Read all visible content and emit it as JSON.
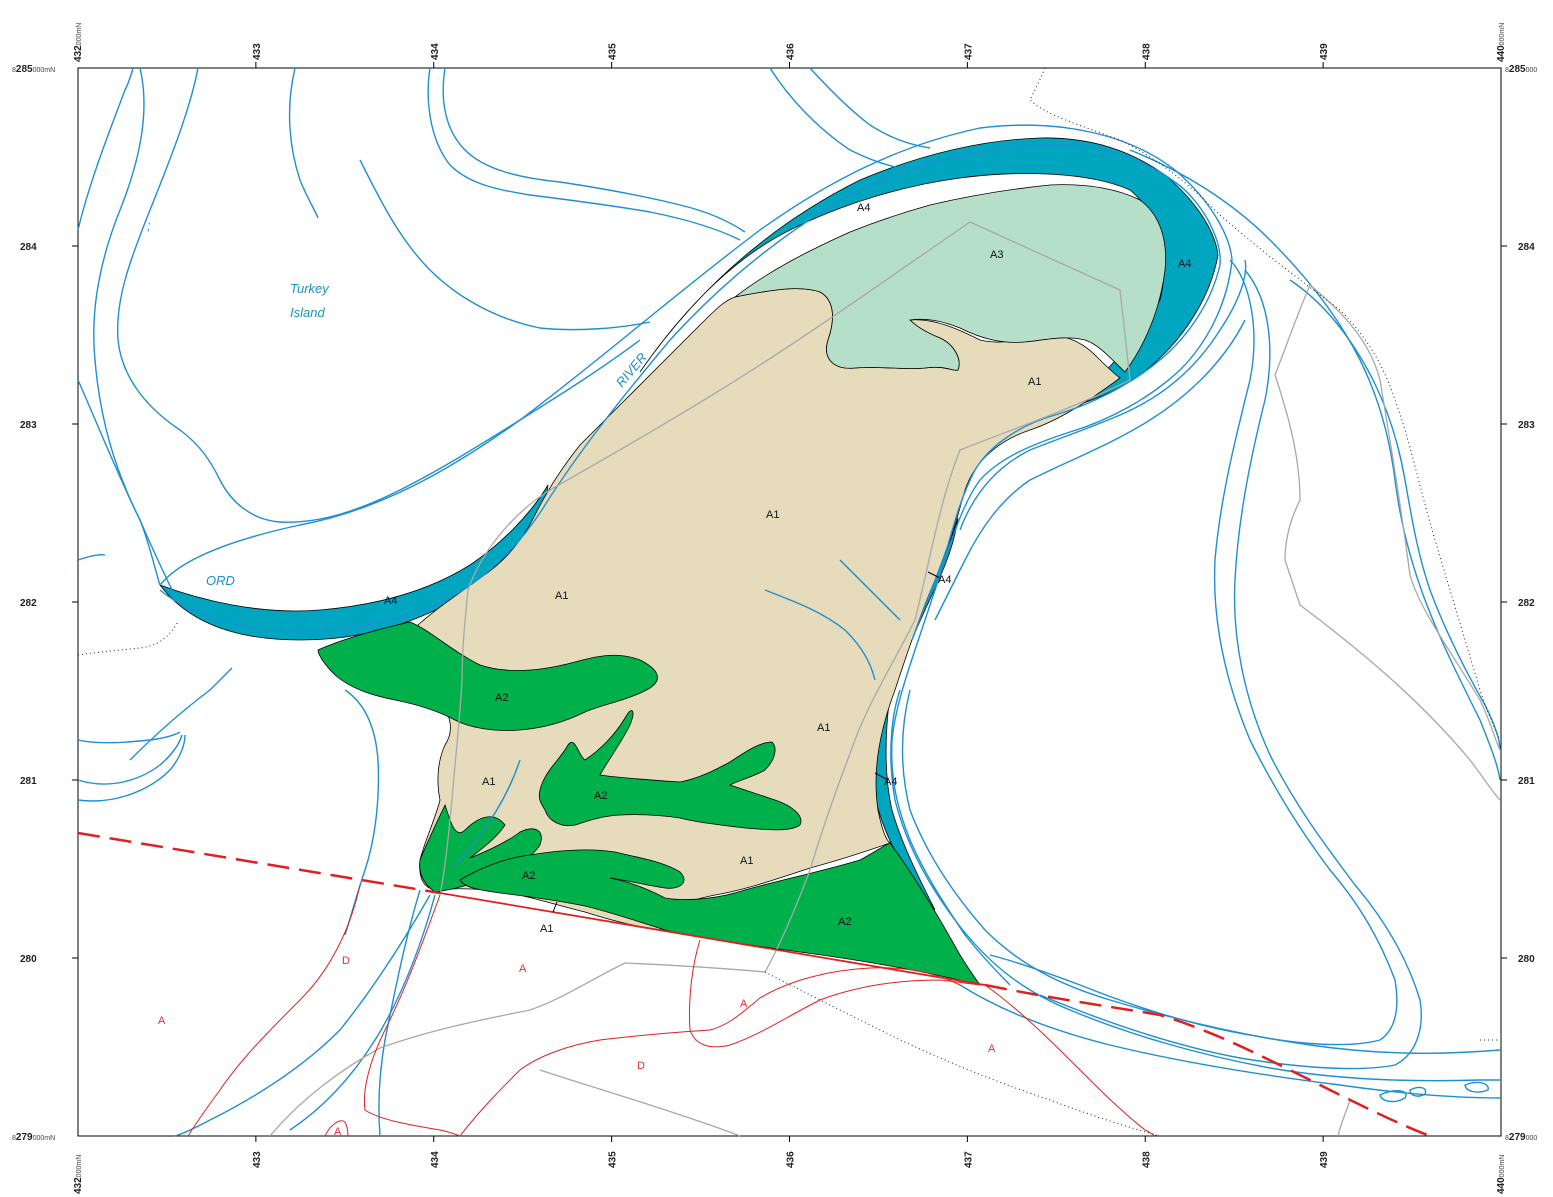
{
  "grid": {
    "corner_top_left": {
      "prefix": "8",
      "value": "285",
      "suffix": "000mN"
    },
    "corner_top_right": {
      "prefix": "8",
      "value": "285",
      "suffix": "000"
    },
    "corner_bottom_left": {
      "prefix": "8",
      "value": "279",
      "suffix": "000mN"
    },
    "corner_bottom_right": {
      "prefix": "8",
      "value": "279",
      "suffix": "000"
    },
    "easting_start": {
      "value": "432",
      "suffix": "000mN"
    },
    "easting_end": {
      "value": "440",
      "suffix": "000mN"
    },
    "eastings": [
      "433",
      "434",
      "435",
      "436",
      "437",
      "438",
      "439"
    ],
    "northings": [
      "284",
      "283",
      "282",
      "281",
      "280"
    ]
  },
  "places": {
    "turkey": "Turkey",
    "island": "Island",
    "river": "RIVER",
    "ord": "ORD"
  },
  "units": {
    "a1_main": "A1",
    "a1_north": "A1",
    "a1_west": "A1",
    "a1_east": "A1",
    "a1_southwest": "A1",
    "a1_south": "A1",
    "a1_tip": "A1",
    "a2_west": "A2",
    "a2_center": "A2",
    "a2_southwest": "A2",
    "a2_south": "A2",
    "a3": "A3",
    "a4_north": "A4",
    "a4_east": "A4",
    "a4_west": "A4",
    "a4_channel1": "A4",
    "a4_channel2": "A4"
  },
  "zones": {
    "z1": "A",
    "z2": "D",
    "z3": "A",
    "z4": "A",
    "z5": "D",
    "z6": "A",
    "z7": "A"
  },
  "legend_colors": {
    "A1": "#e6dcbc",
    "A2": "#00b04a",
    "A3": "#b5dfc8",
    "A4": "#00a6c0",
    "river_lines": "#1e8fd0",
    "boundary_red": "#e02020",
    "roads_grey": "#a8a8a8"
  }
}
